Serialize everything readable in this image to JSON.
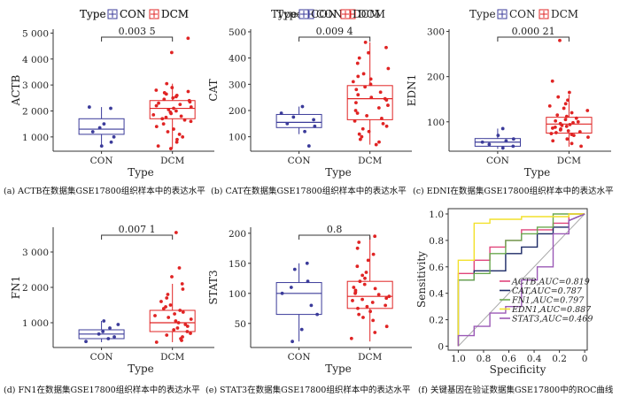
{
  "captions": {
    "a": "(a) ACTB在数据集GSE17800组织样本中的表达水平",
    "b": "(b) CAT在数据集GSE17800组织样本中的表达水平",
    "c": "(c) EDNI在数据集GSE17800组织样本中的表达水平",
    "d": "(d) FN1在数据集GSE17800组织样本中的表达水平",
    "e": "(e) STAT3在数据集GSE17800组织样本中的表达水平",
    "f": "(f) 关键基因在验证数据集GSE17800中的ROC曲线"
  },
  "colors": {
    "con": "#3b3b9a",
    "dcm": "#e02424",
    "diag": "#aaaaaa"
  },
  "chart_data": [
    {
      "id": "a",
      "type": "box",
      "xlabel": "Type",
      "ylabel": "ACTB",
      "legend": {
        "title": "Type",
        "items": [
          "CON",
          "DCM"
        ],
        "placement": "top"
      },
      "categories": [
        "CON",
        "DCM"
      ],
      "ylim": [
        450,
        5150
      ],
      "yticks": [
        1000,
        2000,
        3000,
        4000,
        5000
      ],
      "yticklabels": [
        "1 000",
        "2 000",
        "3 000",
        "4 000",
        "5 000"
      ],
      "pvalue": "0.003 5",
      "boxes": [
        {
          "group": "CON",
          "min": 600,
          "q1": 1100,
          "median": 1300,
          "q3": 1700,
          "max": 2150
        },
        {
          "group": "DCM",
          "min": 550,
          "q1": 1700,
          "median": 2100,
          "q3": 2400,
          "max": 3050
        }
      ],
      "points": [
        {
          "group": "CON",
          "values": [
            2150,
            2100,
            1500,
            1350,
            1200,
            1000,
            800,
            650
          ]
        },
        {
          "group": "DCM",
          "values": [
            4800,
            4250,
            3050,
            2900,
            2800,
            2750,
            2700,
            2650,
            2600,
            2550,
            2500,
            2450,
            2400,
            2350,
            2300,
            2250,
            2200,
            2150,
            2100,
            2050,
            2000,
            1950,
            1900,
            1850,
            1800,
            1750,
            1700,
            1650,
            1600,
            1500,
            1400,
            1300,
            1200,
            1100,
            1000,
            900,
            800,
            650,
            550
          ]
        }
      ]
    },
    {
      "id": "b",
      "type": "box",
      "xlabel": "Type",
      "ylabel": "CAT",
      "legend": {
        "title": "Type",
        "items": [
          "CON",
          "DCM"
        ],
        "placement": "top"
      },
      "categories": [
        "CON",
        "DCM"
      ],
      "ylim": [
        45,
        510
      ],
      "yticks": [
        100,
        200,
        300,
        400,
        500
      ],
      "yticklabels": [
        "100",
        "200",
        "300",
        "400",
        "500"
      ],
      "pvalue": "0.009 4",
      "boxes": [
        {
          "group": "CON",
          "min": 110,
          "q1": 135,
          "median": 155,
          "q3": 185,
          "max": 215
        },
        {
          "group": "DCM",
          "min": 70,
          "q1": 165,
          "median": 245,
          "q3": 295,
          "max": 460
        }
      ],
      "points": [
        {
          "group": "CON",
          "values": [
            215,
            190,
            175,
            165,
            150,
            140,
            120,
            65
          ]
        },
        {
          "group": "DCM",
          "values": [
            460,
            440,
            420,
            400,
            380,
            360,
            340,
            330,
            320,
            310,
            300,
            290,
            280,
            270,
            260,
            250,
            245,
            240,
            230,
            220,
            210,
            200,
            190,
            180,
            170,
            160,
            150,
            140,
            130,
            120,
            110,
            100,
            90,
            80,
            70
          ]
        }
      ]
    },
    {
      "id": "c",
      "type": "box",
      "xlabel": "Type",
      "ylabel": "EDN1",
      "legend": {
        "title": "Type",
        "items": [
          "CON",
          "DCM"
        ],
        "placement": "top"
      },
      "categories": [
        "CON",
        "DCM"
      ],
      "ylim": [
        35,
        305
      ],
      "yticks": [
        100,
        200,
        300
      ],
      "yticklabels": [
        "100",
        "200",
        "300"
      ],
      "pvalue": "0.000 21",
      "boxes": [
        {
          "group": "CON",
          "min": 40,
          "q1": 46,
          "median": 55,
          "q3": 63,
          "max": 85
        },
        {
          "group": "DCM",
          "min": 45,
          "q1": 75,
          "median": 95,
          "q3": 110,
          "max": 160
        }
      ],
      "points": [
        {
          "group": "CON",
          "values": [
            85,
            70,
            62,
            58,
            55,
            50,
            46,
            42
          ]
        },
        {
          "group": "DCM",
          "values": [
            280,
            190,
            165,
            155,
            148,
            140,
            135,
            130,
            125,
            120,
            115,
            112,
            108,
            105,
            102,
            100,
            98,
            96,
            94,
            92,
            90,
            88,
            86,
            84,
            82,
            80,
            78,
            76,
            74,
            72,
            70,
            66,
            62,
            58,
            52,
            46
          ]
        }
      ]
    },
    {
      "id": "d",
      "type": "box",
      "xlabel": "Type",
      "ylabel": "FN1",
      "legend": {
        "title": "Type",
        "items": [
          "CON",
          "DCM"
        ],
        "placement": "top"
      },
      "categories": [
        "CON",
        "DCM"
      ],
      "ylim": [
        300,
        3700
      ],
      "yticks": [
        1000,
        2000,
        3000
      ],
      "yticklabels": [
        "1 000",
        "2 000",
        "3 000"
      ],
      "pvalue": "0.007 1",
      "boxes": [
        {
          "group": "CON",
          "min": 450,
          "q1": 550,
          "median": 680,
          "q3": 800,
          "max": 1050
        },
        {
          "group": "DCM",
          "min": 450,
          "q1": 750,
          "median": 1000,
          "q3": 1350,
          "max": 2100
        }
      ],
      "points": [
        {
          "group": "CON",
          "values": [
            1050,
            950,
            850,
            750,
            680,
            600,
            550,
            470
          ]
        },
        {
          "group": "DCM",
          "values": [
            3550,
            2550,
            2300,
            2100,
            1950,
            1800,
            1700,
            1600,
            1500,
            1450,
            1400,
            1350,
            1300,
            1250,
            1200,
            1150,
            1100,
            1050,
            1000,
            950,
            900,
            850,
            800,
            750,
            700,
            650,
            600,
            550,
            500,
            450
          ]
        }
      ]
    },
    {
      "id": "e",
      "type": "box",
      "xlabel": "Type",
      "ylabel": "STAT3",
      "legend": {
        "title": "Type",
        "items": [
          "CON",
          "DCM"
        ],
        "placement": "top"
      },
      "categories": [
        "CON",
        "DCM"
      ],
      "ylim": [
        10,
        210
      ],
      "yticks": [
        50,
        100,
        150,
        200
      ],
      "yticklabels": [
        "50",
        "100",
        "150",
        "200"
      ],
      "pvalue": "0.8",
      "boxes": [
        {
          "group": "CON",
          "min": 20,
          "q1": 65,
          "median": 100,
          "q3": 118,
          "max": 150
        },
        {
          "group": "DCM",
          "min": 20,
          "q1": 75,
          "median": 95,
          "q3": 120,
          "max": 195
        }
      ],
      "points": [
        {
          "group": "CON",
          "values": [
            150,
            140,
            120,
            110,
            100,
            80,
            65,
            40,
            20
          ]
        },
        {
          "group": "DCM",
          "values": [
            195,
            185,
            175,
            165,
            155,
            145,
            135,
            130,
            125,
            120,
            115,
            110,
            108,
            105,
            102,
            100,
            98,
            95,
            92,
            90,
            88,
            85,
            80,
            78,
            75,
            70,
            65,
            60,
            55,
            45,
            35,
            25
          ]
        }
      ]
    },
    {
      "id": "f",
      "type": "line",
      "xlabel": "Specificity",
      "ylabel": "Sensitivity",
      "xlim": [
        1.08,
        -0.02
      ],
      "ylim": [
        -0.03,
        1.04
      ],
      "xticks": [
        1.0,
        0.8,
        0.6,
        0.4,
        0.2,
        0.0
      ],
      "xticklabels": [
        "1.0",
        "0.8",
        "0.6",
        "0.4",
        "0.2",
        "0"
      ],
      "yticks": [
        0,
        0.2,
        0.4,
        0.6,
        0.8,
        1.0
      ],
      "yticklabels": [
        "0",
        "0.2",
        "0.4",
        "0.6",
        "0.8",
        "1.0"
      ],
      "legend_placement": "bottom-right",
      "series": [
        {
          "name": "ACTB,AUC=0.819",
          "color": "#e0457b",
          "x": [
            1,
            1,
            0.875,
            0.875,
            0.75,
            0.75,
            0.625,
            0.625,
            0.5,
            0.5,
            0.25,
            0.25,
            0.125,
            0.125,
            0
          ],
          "y": [
            0,
            0.55,
            0.55,
            0.65,
            0.65,
            0.75,
            0.75,
            0.8,
            0.8,
            0.88,
            0.88,
            0.93,
            0.93,
            1,
            1
          ]
        },
        {
          "name": "CAT,AUC=0.787",
          "color": "#1c2a66",
          "x": [
            1,
            1,
            0.875,
            0.875,
            0.625,
            0.625,
            0.5,
            0.5,
            0.375,
            0.375,
            0.25,
            0.25,
            0.125,
            0.125,
            0
          ],
          "y": [
            0,
            0.5,
            0.5,
            0.57,
            0.57,
            0.7,
            0.7,
            0.75,
            0.75,
            0.85,
            0.85,
            0.9,
            0.9,
            0.95,
            1
          ]
        },
        {
          "name": "FN1,AUC=0.797",
          "color": "#6aa84f",
          "x": [
            1,
            1,
            0.875,
            0.875,
            0.75,
            0.75,
            0.625,
            0.625,
            0.5,
            0.5,
            0.375,
            0.375,
            0.25,
            0.25,
            0
          ],
          "y": [
            0,
            0.5,
            0.5,
            0.55,
            0.55,
            0.7,
            0.7,
            0.8,
            0.8,
            0.85,
            0.85,
            0.9,
            0.9,
            1,
            1
          ]
        },
        {
          "name": "EDN1,AUC=0.887",
          "color": "#f2e12b",
          "x": [
            1,
            1,
            0.875,
            0.875,
            0.75,
            0.75,
            0.5,
            0.5,
            0.125,
            0.125,
            0
          ],
          "y": [
            0,
            0.65,
            0.65,
            0.93,
            0.93,
            0.96,
            0.96,
            0.98,
            0.98,
            1,
            1
          ]
        },
        {
          "name": "STAT3,AUC=0.469",
          "color": "#9b59b6",
          "x": [
            1,
            1,
            0.875,
            0.875,
            0.75,
            0.75,
            0.625,
            0.625,
            0.5,
            0.5,
            0.375,
            0.375,
            0.25,
            0.25,
            0.125,
            0.125,
            0
          ],
          "y": [
            0,
            0.08,
            0.08,
            0.15,
            0.15,
            0.25,
            0.25,
            0.3,
            0.3,
            0.5,
            0.5,
            0.6,
            0.6,
            0.85,
            0.85,
            0.95,
            1
          ]
        }
      ]
    }
  ]
}
